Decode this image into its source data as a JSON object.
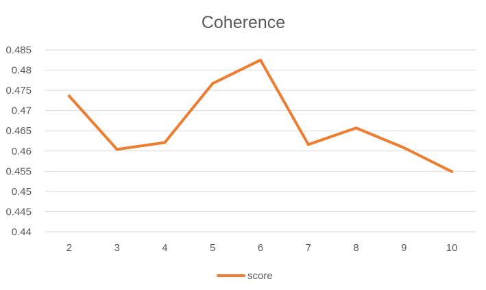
{
  "chart_data": {
    "type": "line",
    "title": "Coherence",
    "xlabel": "",
    "ylabel": "",
    "categories": [
      "2",
      "3",
      "4",
      "5",
      "6",
      "7",
      "8",
      "9",
      "10"
    ],
    "series": [
      {
        "name": "score",
        "color": "#ED7D31",
        "values": [
          0.4736,
          0.4604,
          0.4621,
          0.4767,
          0.4825,
          0.4616,
          0.4657,
          0.4608,
          0.4549
        ]
      }
    ],
    "ylim": [
      0.44,
      0.485
    ],
    "y_ticks": [
      "0.485",
      "0.48",
      "0.475",
      "0.47",
      "0.465",
      "0.46",
      "0.455",
      "0.45",
      "0.445",
      "0.44"
    ],
    "grid": "horizontal",
    "legend_position": "bottom"
  }
}
